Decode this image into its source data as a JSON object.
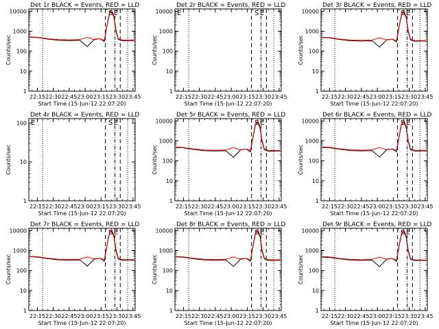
{
  "figure": {
    "xlabel": "Start Time (15-Jun-12 22:07:20)",
    "ylabel": "Counts/sec",
    "x_tick_labels": [
      "22:15",
      "22:30",
      "22:45",
      "23:00",
      "23:15",
      "23:30",
      "23:45"
    ],
    "y_tick_labels": [
      "1",
      "10",
      "100",
      "1000",
      "10000"
    ],
    "colors": {
      "events": "#000000",
      "lld": "#ff0000",
      "background": "#ffffff"
    },
    "vertical_markers": {
      "dotted": [
        "22:20",
        "23:40"
      ],
      "dashed": [
        "23:19",
        "23:33"
      ],
      "dash_dot": [
        "23:28"
      ]
    },
    "marker_letters": [
      "S",
      "E"
    ]
  },
  "chart_data": [
    {
      "type": "line",
      "title": "Det 1r BLACK = Events, RED = LLD",
      "x": [
        "22:08",
        "22:15",
        "22:25",
        "22:35",
        "22:45",
        "22:55",
        "23:02",
        "23:09",
        "23:14",
        "23:18",
        "23:21",
        "23:23",
        "23:25",
        "23:27",
        "23:29",
        "23:31",
        "23:33",
        "23:36",
        "23:40",
        "23:46"
      ],
      "xlim": [
        "22:07",
        "23:47"
      ],
      "yscale": "log",
      "ylim": [
        1,
        13000
      ],
      "series": [
        {
          "name": "Events",
          "color": "#000000",
          "values": [
            500,
            480,
            400,
            350,
            340,
            350,
            170,
            400,
            420,
            300,
            2500,
            8000,
            9500,
            5000,
            1000,
            400,
            350,
            330,
            340,
            340
          ]
        },
        {
          "name": "LLD",
          "color": "#ff0000",
          "values": [
            520,
            500,
            420,
            380,
            370,
            380,
            490,
            380,
            420,
            350,
            2800,
            9000,
            11000,
            6000,
            1200,
            450,
            380,
            360,
            360,
            360
          ]
        }
      ]
    },
    {
      "type": "line",
      "title": "Det 2r BLACK = Events, RED = LLD",
      "x": [],
      "xlim": [
        "22:07",
        "23:47"
      ],
      "yscale": "log",
      "ylim": [
        1,
        13000
      ],
      "series": [
        {
          "name": "Events",
          "color": "#000000",
          "values": []
        },
        {
          "name": "LLD",
          "color": "#ff0000",
          "values": []
        }
      ]
    },
    {
      "type": "line",
      "title": "Det 3r BLACK = Events, RED = LLD",
      "x": [
        "22:08",
        "22:15",
        "22:25",
        "22:35",
        "22:45",
        "22:55",
        "23:02",
        "23:09",
        "23:14",
        "23:18",
        "23:21",
        "23:23",
        "23:25",
        "23:27",
        "23:29",
        "23:31",
        "23:33",
        "23:36",
        "23:40",
        "23:46"
      ],
      "xlim": [
        "22:07",
        "23:47"
      ],
      "yscale": "log",
      "ylim": [
        1,
        13000
      ],
      "series": [
        {
          "name": "Events",
          "color": "#000000",
          "values": [
            480,
            460,
            380,
            330,
            320,
            330,
            160,
            380,
            400,
            290,
            2300,
            7500,
            9000,
            4800,
            950,
            380,
            330,
            310,
            320,
            320
          ]
        },
        {
          "name": "LLD",
          "color": "#ff0000",
          "values": [
            500,
            480,
            400,
            360,
            350,
            360,
            470,
            360,
            400,
            340,
            2600,
            8500,
            10500,
            5800,
            1150,
            430,
            360,
            340,
            340,
            340
          ]
        }
      ]
    },
    {
      "type": "line",
      "title": "Det 4r BLACK = Events, RED = LLD",
      "x": [],
      "xlim": [
        "22:07",
        "23:47"
      ],
      "yscale": "log",
      "ylim": [
        1,
        130
      ],
      "series": [
        {
          "name": "Events",
          "color": "#000000",
          "values": []
        },
        {
          "name": "LLD",
          "color": "#ff0000",
          "values": []
        }
      ]
    },
    {
      "type": "line",
      "title": "Det 5r BLACK = Events, RED = LLD",
      "x": [
        "22:08",
        "22:15",
        "22:25",
        "22:35",
        "22:45",
        "22:55",
        "23:02",
        "23:09",
        "23:14",
        "23:18",
        "23:21",
        "23:23",
        "23:25",
        "23:27",
        "23:29",
        "23:31",
        "23:33",
        "23:36",
        "23:40",
        "23:46"
      ],
      "xlim": [
        "22:07",
        "23:47"
      ],
      "yscale": "log",
      "ylim": [
        1,
        13000
      ],
      "series": [
        {
          "name": "Events",
          "color": "#000000",
          "values": [
            460,
            450,
            370,
            320,
            310,
            320,
            150,
            360,
            390,
            280,
            2200,
            7000,
            8500,
            4500,
            900,
            370,
            320,
            300,
            310,
            310
          ]
        },
        {
          "name": "LLD",
          "color": "#ff0000",
          "values": [
            490,
            470,
            390,
            350,
            340,
            350,
            460,
            350,
            390,
            330,
            2500,
            8000,
            10000,
            5500,
            1100,
            420,
            350,
            330,
            330,
            330
          ]
        }
      ]
    },
    {
      "type": "line",
      "title": "Det 6r BLACK = Events, RED = LLD",
      "x": [
        "22:08",
        "22:15",
        "22:25",
        "22:35",
        "22:45",
        "22:55",
        "23:02",
        "23:09",
        "23:14",
        "23:18",
        "23:21",
        "23:23",
        "23:25",
        "23:27",
        "23:29",
        "23:31",
        "23:33",
        "23:36",
        "23:40",
        "23:46"
      ],
      "xlim": [
        "22:07",
        "23:47"
      ],
      "yscale": "log",
      "ylim": [
        1,
        13000
      ],
      "series": [
        {
          "name": "Events",
          "color": "#000000",
          "values": [
            470,
            455,
            375,
            325,
            315,
            325,
            155,
            370,
            395,
            285,
            2250,
            7200,
            8800,
            4600,
            920,
            375,
            325,
            305,
            315,
            315
          ]
        },
        {
          "name": "LLD",
          "color": "#ff0000",
          "values": [
            495,
            475,
            395,
            355,
            345,
            355,
            465,
            355,
            395,
            335,
            2550,
            8200,
            10200,
            5600,
            1120,
            425,
            355,
            335,
            335,
            335
          ]
        }
      ]
    },
    {
      "type": "line",
      "title": "Det 7r BLACK = Events, RED = LLD",
      "x": [
        "22:08",
        "22:15",
        "22:25",
        "22:35",
        "22:45",
        "22:55",
        "23:02",
        "23:09",
        "23:14",
        "23:18",
        "23:21",
        "23:23",
        "23:25",
        "23:27",
        "23:29",
        "23:31",
        "23:33",
        "23:36",
        "23:40",
        "23:46"
      ],
      "xlim": [
        "22:07",
        "23:47"
      ],
      "yscale": "log",
      "ylim": [
        1,
        13000
      ],
      "series": [
        {
          "name": "Events",
          "color": "#000000",
          "values": [
            490,
            470,
            390,
            340,
            330,
            340,
            165,
            390,
            410,
            295,
            2400,
            7800,
            9200,
            4900,
            980,
            390,
            340,
            320,
            330,
            330
          ]
        },
        {
          "name": "LLD",
          "color": "#ff0000",
          "values": [
            510,
            490,
            410,
            370,
            360,
            370,
            480,
            370,
            410,
            345,
            2700,
            8800,
            10800,
            5900,
            1180,
            440,
            370,
            350,
            350,
            350
          ]
        }
      ]
    },
    {
      "type": "line",
      "title": "Det 8r BLACK = Events, RED = LLD",
      "x": [
        "22:08",
        "22:15",
        "22:25",
        "22:35",
        "22:45",
        "22:55",
        "23:02",
        "23:09",
        "23:14",
        "23:18",
        "23:21",
        "23:23",
        "23:25",
        "23:27",
        "23:29",
        "23:31",
        "23:33",
        "23:36",
        "23:40",
        "23:46"
      ],
      "xlim": [
        "22:07",
        "23:47"
      ],
      "yscale": "log",
      "ylim": [
        1,
        13000
      ],
      "series": [
        {
          "name": "Events",
          "color": "#000000",
          "values": [
            480,
            460,
            385,
            335,
            325,
            335,
            160,
            385,
            405,
            290,
            2350,
            7600,
            9100,
            4850,
            960,
            385,
            335,
            315,
            325,
            325
          ]
        },
        {
          "name": "LLD",
          "color": "#ff0000",
          "values": [
            505,
            485,
            405,
            365,
            355,
            365,
            475,
            365,
            405,
            340,
            2650,
            8600,
            10600,
            5850,
            1160,
            435,
            365,
            345,
            345,
            345
          ]
        }
      ]
    },
    {
      "type": "line",
      "title": "Det 9r BLACK = Events, RED = LLD",
      "x": [
        "22:08",
        "22:15",
        "22:25",
        "22:35",
        "22:45",
        "22:55",
        "23:02",
        "23:09",
        "23:14",
        "23:18",
        "23:21",
        "23:23",
        "23:25",
        "23:27",
        "23:29",
        "23:31",
        "23:33",
        "23:36",
        "23:40",
        "23:46"
      ],
      "xlim": [
        "22:07",
        "23:47"
      ],
      "yscale": "log",
      "ylim": [
        1,
        13000
      ],
      "series": [
        {
          "name": "Events",
          "color": "#000000",
          "values": [
            470,
            450,
            380,
            330,
            320,
            330,
            155,
            375,
            400,
            285,
            2300,
            7400,
            8900,
            4700,
            940,
            380,
            330,
            310,
            320,
            320
          ]
        },
        {
          "name": "LLD",
          "color": "#ff0000",
          "values": [
            500,
            480,
            400,
            360,
            350,
            360,
            470,
            360,
            400,
            335,
            2600,
            8400,
            10400,
            5700,
            1140,
            430,
            360,
            340,
            340,
            340
          ]
        }
      ]
    }
  ]
}
